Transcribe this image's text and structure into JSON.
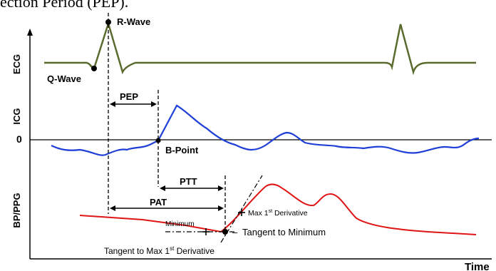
{
  "header_fragment": "ection Period (PEP).",
  "labels": {
    "ecg_axis": "ECG",
    "icg_axis": "ICG",
    "bp_axis": "BP/PPG",
    "zero": "0",
    "time": "Time",
    "r_wave": "R-Wave",
    "q_wave": "Q-Wave",
    "pep": "PEP",
    "b_point": "B-Point",
    "ptt": "PTT",
    "pat": "PAT",
    "max_deriv_prefix": "Max 1",
    "deriv_sup": "st",
    "max_deriv_suffix": " Derivative",
    "minimum": "Minimum",
    "tangent_min": "Tangent to Minimum",
    "tangent_max_prefix": "Tangent to Max 1",
    "tangent_max_suffix": " Derivative"
  },
  "colors": {
    "ecg": "#5a6b2e",
    "icg": "#1f3fd6",
    "bp": "#e01414",
    "ink": "#000000"
  }
}
